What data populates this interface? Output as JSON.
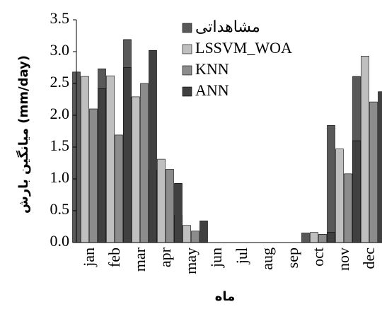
{
  "chart_data": {
    "type": "bar",
    "categories": [
      "jan",
      "feb",
      "mar",
      "apr",
      "may",
      "jun",
      "jul",
      "aug",
      "sep",
      "oct",
      "nov",
      "dec"
    ],
    "series": [
      {
        "name": "مشاهداتی",
        "color": "#595959",
        "values": [
          2.68,
          2.73,
          3.19,
          1.14,
          0.43,
          0.0,
          0.0,
          0.0,
          0.0,
          0.15,
          1.84,
          2.61
        ]
      },
      {
        "name": "LSSVM_WOA",
        "color": "#bfbfbf",
        "values": [
          2.61,
          2.62,
          2.29,
          1.31,
          0.27,
          0.0,
          0.0,
          0.0,
          0.0,
          0.16,
          1.47,
          2.93
        ]
      },
      {
        "name": "KNN",
        "color": "#8c8c8c",
        "values": [
          2.1,
          1.69,
          2.5,
          1.15,
          0.18,
          0.0,
          0.0,
          0.0,
          0.0,
          0.13,
          1.08,
          2.21
        ]
      },
      {
        "name": "ANN",
        "color": "#404040",
        "values": [
          2.42,
          2.75,
          3.02,
          0.93,
          0.34,
          0.0,
          0.0,
          0.0,
          0.0,
          0.16,
          1.6,
          2.37
        ]
      }
    ],
    "ylabel": "میانگین بارش (mm/day)",
    "xlabel": "ماه",
    "ylim": [
      0,
      3.5
    ],
    "yticks": [
      0.0,
      0.5,
      1.0,
      1.5,
      2.0,
      2.5,
      3.0,
      3.5
    ],
    "grid": false,
    "legend_position": "top-center"
  }
}
